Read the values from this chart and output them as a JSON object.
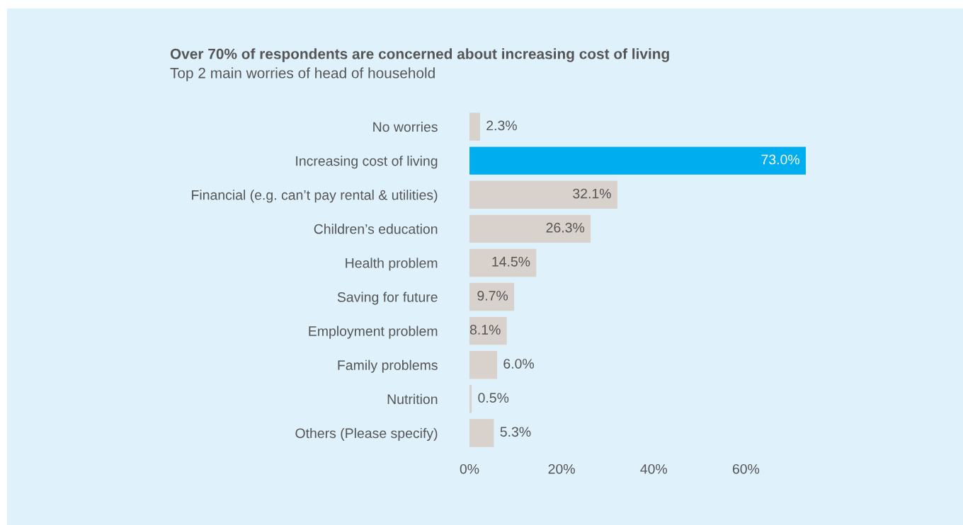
{
  "chart_data": {
    "type": "bar",
    "orientation": "horizontal",
    "title": "Over 70% of respondents are concerned about increasing cost of living",
    "subtitle": "Top 2 main worries of head of household",
    "categories": [
      "No worries",
      "Increasing cost of living",
      "Financial (e.g. can’t pay rental & utilities)",
      "Children’s education",
      "Health problem",
      "Saving for future",
      "Employment problem",
      "Family problems",
      "Nutrition",
      "Others (Please specify)"
    ],
    "values": [
      2.3,
      73.0,
      32.1,
      26.3,
      14.5,
      9.7,
      8.1,
      6.0,
      0.5,
      5.3
    ],
    "colors": [
      "#d9d1cb",
      "#00aeef",
      "#d9d1cb",
      "#d9d1cb",
      "#d9d1cb",
      "#d9d1cb",
      "#d9d1cb",
      "#d9d1cb",
      "#d9d1cb",
      "#d9d1cb"
    ],
    "value_labels": [
      "2.3%",
      "73.0%",
      "32.1%",
      "26.3%",
      "14.5%",
      "9.7%",
      "8.1%",
      "6.0%",
      "0.5%",
      "5.3%"
    ],
    "xlim": [
      0,
      73
    ],
    "xticks": [
      {
        "value": 0,
        "label": "0%"
      },
      {
        "value": 20,
        "label": "20%"
      },
      {
        "value": 40,
        "label": "40%"
      },
      {
        "value": 60,
        "label": "60%"
      }
    ],
    "grid": false,
    "legend": false
  }
}
